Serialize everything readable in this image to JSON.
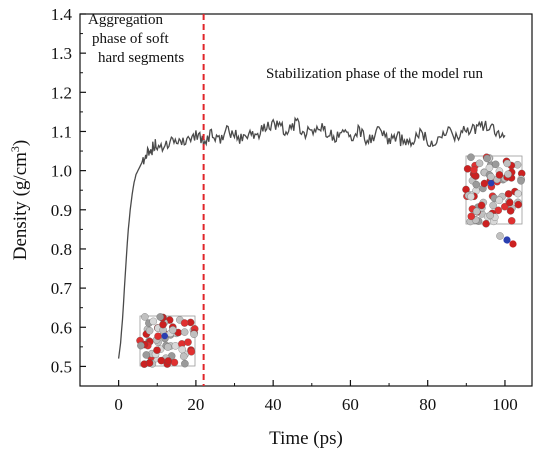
{
  "chart_data": {
    "type": "line",
    "xlabel": "Time (ps)",
    "ylabel": "Density (g/cm³)",
    "ylabel_main": "Density (g/cm",
    "ylabel_sup": "3",
    "ylabel_close": ")",
    "xlim": [
      -10,
      107
    ],
    "ylim": [
      0.45,
      1.4
    ],
    "xticks": [
      0,
      20,
      40,
      60,
      80,
      100
    ],
    "xtick_labels": [
      "0",
      "20",
      "40",
      "60",
      "80",
      "100"
    ],
    "yticks": [
      0.5,
      0.6,
      0.7,
      0.8,
      0.9,
      1.0,
      1.1,
      1.2,
      1.3,
      1.4
    ],
    "ytick_labels": [
      "0.5",
      "0.6",
      "0.7",
      "0.8",
      "0.9",
      "1.0",
      "1.1",
      "1.2",
      "1.3",
      "1.4"
    ],
    "grid": false,
    "series": [
      {
        "color": "#4a4a4a",
        "x": [
          0,
          0.5,
          1,
          1.5,
          2,
          2.5,
          3,
          3.5,
          4,
          4.5,
          5,
          5.5,
          6,
          7,
          8,
          9,
          10,
          12,
          14,
          16,
          18,
          20,
          22,
          24,
          26,
          28,
          30,
          32,
          34,
          36,
          38,
          40,
          42,
          44,
          46,
          48,
          50,
          52,
          54,
          56,
          58,
          60,
          62,
          64,
          66,
          68,
          70,
          72,
          74,
          76,
          78,
          80,
          82,
          84,
          86,
          88,
          90,
          92,
          94,
          96,
          98,
          100
        ],
        "y": [
          0.52,
          0.56,
          0.62,
          0.7,
          0.78,
          0.85,
          0.9,
          0.94,
          0.97,
          0.99,
          1.0,
          1.01,
          1.02,
          1.04,
          1.05,
          1.06,
          1.07,
          1.06,
          1.07,
          1.08,
          1.07,
          1.09,
          1.08,
          1.09,
          1.08,
          1.1,
          1.09,
          1.08,
          1.1,
          1.09,
          1.11,
          1.12,
          1.11,
          1.1,
          1.12,
          1.1,
          1.09,
          1.11,
          1.1,
          1.08,
          1.1,
          1.09,
          1.1,
          1.08,
          1.09,
          1.1,
          1.08,
          1.09,
          1.07,
          1.08,
          1.09,
          1.08,
          1.07,
          1.09,
          1.1,
          1.08,
          1.11,
          1.1,
          1.12,
          1.11,
          1.1,
          1.09
        ]
      }
    ],
    "vline": {
      "x": 22,
      "color": "#e0252a",
      "style": "dashed"
    },
    "annotations": [
      {
        "lines": [
          "Aggregation",
          "phase of soft",
          "hard segments"
        ]
      },
      {
        "lines": [
          "Stabilization phase of the model run"
        ]
      }
    ],
    "insets": [
      {
        "name": "molecular-model-initial"
      },
      {
        "name": "molecular-model-final"
      }
    ]
  }
}
